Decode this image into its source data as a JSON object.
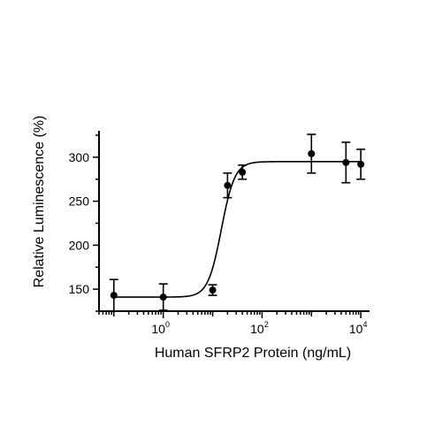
{
  "chart_data": {
    "type": "scatter",
    "title": "",
    "xlabel": "Human SFRP2 Protein (ng/mL)",
    "ylabel": "Relative Luminescence (%)",
    "x_scale": "log10",
    "xlim": [
      0.05,
      15000
    ],
    "ylim": [
      125,
      330
    ],
    "x_ticks": [
      {
        "value": 1,
        "base": "10",
        "exp": "0"
      },
      {
        "value": 100,
        "base": "10",
        "exp": "2"
      },
      {
        "value": 10000,
        "base": "10",
        "exp": "4"
      }
    ],
    "y_ticks": [
      150,
      200,
      250,
      300
    ],
    "grid": false,
    "legend": "none",
    "points": [
      {
        "x": 0.1,
        "y": 143,
        "err": 18
      },
      {
        "x": 1,
        "y": 141,
        "err": 15
      },
      {
        "x": 10,
        "y": 149,
        "err": 6
      },
      {
        "x": 20,
        "y": 268,
        "err": 14
      },
      {
        "x": 40,
        "y": 283,
        "err": 8
      },
      {
        "x": 1000,
        "y": 304,
        "err": 22
      },
      {
        "x": 5000,
        "y": 294,
        "err": 23
      },
      {
        "x": 10000,
        "y": 292,
        "err": 17
      }
    ],
    "fit": {
      "bottom": 141,
      "top": 295,
      "ec50": 15,
      "hill": 3.2
    }
  }
}
